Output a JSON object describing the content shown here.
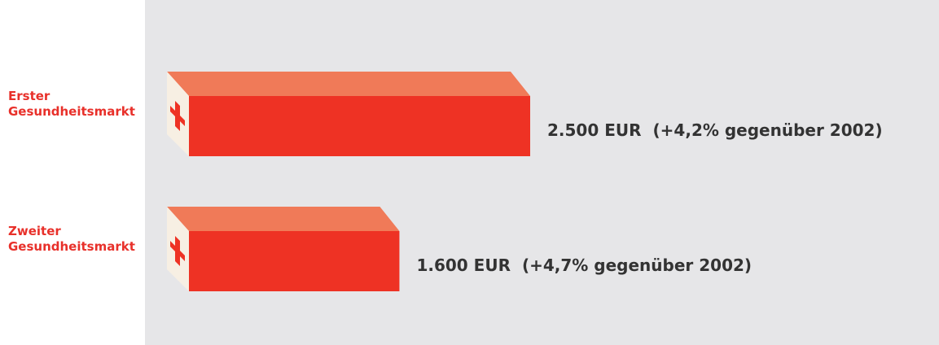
{
  "chart_data": {
    "type": "bar3d",
    "categories": [
      "Erster Gesundheitsmarkt",
      "Zweiter Gesundheitsmarkt"
    ],
    "values": [
      2500,
      1600
    ],
    "value_labels": [
      "2.500 EUR",
      "1.600 EUR"
    ],
    "annotations": [
      "(+4,2% gegenüber 2002)",
      "(+4,7% gegenüber 2002)"
    ],
    "color": "#ee3224"
  }
}
